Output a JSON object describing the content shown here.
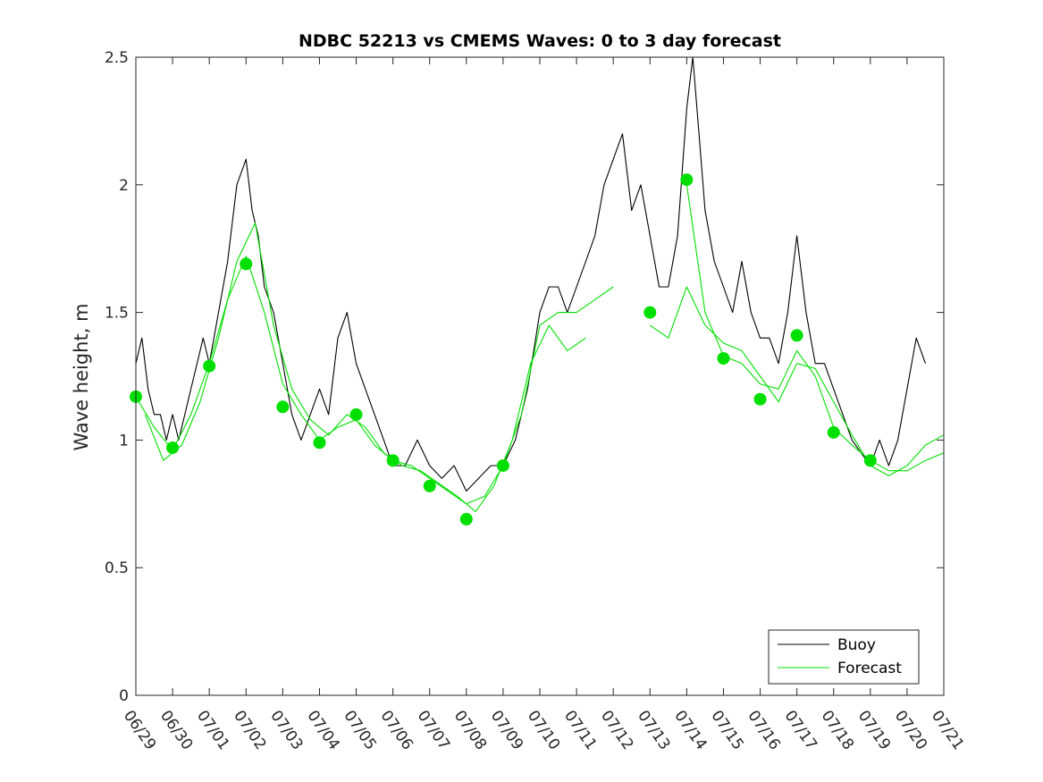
{
  "chart_data": {
    "type": "line",
    "title": "NDBC 52213 vs CMEMS Waves: 0 to 3 day forecast",
    "xlabel": "",
    "ylabel": "Wave height, m",
    "xlim": [
      "2024-06-29",
      "2024-07-21"
    ],
    "ylim": [
      0,
      2.5
    ],
    "x_ticks": [
      "06/29",
      "06/30",
      "07/01",
      "07/02",
      "07/03",
      "07/04",
      "07/05",
      "07/06",
      "07/07",
      "07/08",
      "07/09",
      "07/10",
      "07/11",
      "07/12",
      "07/13",
      "07/14",
      "07/15",
      "07/16",
      "07/17",
      "07/18",
      "07/19",
      "07/20",
      "07/21"
    ],
    "y_ticks": [
      "0",
      "0.5",
      "1",
      "1.5",
      "2",
      "2.5"
    ],
    "legend": {
      "position": "bottom-right",
      "entries": [
        {
          "label": "Buoy",
          "color": "#000000"
        },
        {
          "label": "Forecast",
          "color": "#00e000"
        }
      ]
    },
    "grid": false,
    "series": [
      {
        "name": "Buoy",
        "color": "#000000",
        "x": [
          "2024-06-29T00:00",
          "2024-06-29T04:00",
          "2024-06-29T08:00",
          "2024-06-29T12:00",
          "2024-06-29T16:00",
          "2024-06-29T20:00",
          "2024-06-30T00:00",
          "2024-06-30T04:00",
          "2024-06-30T08:00",
          "2024-06-30T12:00",
          "2024-06-30T16:00",
          "2024-06-30T20:00",
          "2024-07-01T00:00",
          "2024-07-01T06:00",
          "2024-07-01T12:00",
          "2024-07-01T18:00",
          "2024-07-02T00:00",
          "2024-07-02T04:00",
          "2024-07-02T08:00",
          "2024-07-02T12:00",
          "2024-07-02T18:00",
          "2024-07-03T00:00",
          "2024-07-03T06:00",
          "2024-07-03T12:00",
          "2024-07-03T18:00",
          "2024-07-04T00:00",
          "2024-07-04T06:00",
          "2024-07-04T12:00",
          "2024-07-04T18:00",
          "2024-07-05T00:00",
          "2024-07-05T06:00",
          "2024-07-05T12:00",
          "2024-07-05T18:00",
          "2024-07-06T00:00",
          "2024-07-06T08:00",
          "2024-07-06T16:00",
          "2024-07-07T00:00",
          "2024-07-07T08:00",
          "2024-07-07T16:00",
          "2024-07-08T00:00",
          "2024-07-08T08:00",
          "2024-07-08T16:00",
          "2024-07-09T00:00",
          "2024-07-09T08:00",
          "2024-07-09T16:00",
          "2024-07-10T00:00",
          "2024-07-10T06:00",
          "2024-07-10T12:00",
          "2024-07-10T18:00",
          "2024-07-11T00:00",
          "2024-07-11T06:00",
          "2024-07-11T12:00",
          "2024-07-11T18:00",
          "2024-07-12T00:00",
          "2024-07-12T06:00",
          "2024-07-12T12:00",
          "2024-07-12T18:00",
          "2024-07-13T00:00",
          "2024-07-13T06:00",
          "2024-07-13T12:00",
          "2024-07-13T18:00",
          "2024-07-14T00:00",
          "2024-07-14T04:00",
          "2024-07-14T08:00",
          "2024-07-14T12:00",
          "2024-07-14T18:00",
          "2024-07-15T00:00",
          "2024-07-15T06:00",
          "2024-07-15T12:00",
          "2024-07-15T18:00",
          "2024-07-16T00:00",
          "2024-07-16T06:00",
          "2024-07-16T12:00",
          "2024-07-16T18:00",
          "2024-07-17T00:00",
          "2024-07-17T06:00",
          "2024-07-17T12:00",
          "2024-07-17T18:00",
          "2024-07-18T00:00",
          "2024-07-18T06:00",
          "2024-07-18T12:00",
          "2024-07-18T18:00",
          "2024-07-19T00:00",
          "2024-07-19T06:00",
          "2024-07-19T12:00",
          "2024-07-19T18:00",
          "2024-07-20T00:00",
          "2024-07-20T06:00",
          "2024-07-20T12:00"
        ],
        "y": [
          1.3,
          1.4,
          1.2,
          1.1,
          1.1,
          1.0,
          1.1,
          1.0,
          1.1,
          1.2,
          1.3,
          1.4,
          1.3,
          1.5,
          1.7,
          2.0,
          2.1,
          1.9,
          1.8,
          1.6,
          1.5,
          1.3,
          1.1,
          1.0,
          1.1,
          1.2,
          1.1,
          1.4,
          1.5,
          1.3,
          1.2,
          1.1,
          1.0,
          0.9,
          0.9,
          1.0,
          0.9,
          0.85,
          0.9,
          0.8,
          0.85,
          0.9,
          0.9,
          1.0,
          1.2,
          1.5,
          1.6,
          1.6,
          1.5,
          1.6,
          1.7,
          1.8,
          2.0,
          2.1,
          2.2,
          1.9,
          2.0,
          1.8,
          1.6,
          1.6,
          1.8,
          2.3,
          2.5,
          2.2,
          1.9,
          1.7,
          1.6,
          1.5,
          1.7,
          1.5,
          1.4,
          1.4,
          1.3,
          1.5,
          1.8,
          1.5,
          1.3,
          1.3,
          1.2,
          1.1,
          1.0,
          0.95,
          0.9,
          1.0,
          0.9,
          1.0,
          1.2,
          1.4,
          1.3
        ]
      },
      {
        "name": "Forecast",
        "color": "#00e000",
        "x": [
          "2024-06-29T00:00",
          "2024-06-29T12:00",
          "2024-06-30T00:00",
          "2024-06-30T12:00",
          "2024-07-01T00:00",
          "2024-07-01T12:00",
          "2024-07-02T00:00",
          "2024-07-02T12:00",
          "2024-07-03T00:00",
          "2024-07-03T12:00",
          "2024-07-04T00:00",
          "2024-07-04T12:00",
          "2024-07-05T00:00",
          "2024-07-05T12:00",
          "2024-07-06T00:00",
          "2024-07-06T12:00",
          "2024-07-07T00:00",
          "2024-07-07T12:00",
          "2024-07-08T00:00",
          "2024-07-08T12:00",
          "2024-07-09T00:00",
          "2024-07-09T12:00",
          "2024-07-10T00:00",
          "2024-07-10T12:00",
          "2024-07-11T00:00",
          "2024-07-11T12:00",
          "2024-07-12T00:00"
        ],
        "y": [
          1.17,
          1.05,
          0.96,
          1.1,
          1.3,
          1.55,
          1.72,
          1.5,
          1.22,
          1.1,
          1.0,
          1.05,
          1.08,
          0.98,
          0.92,
          0.9,
          0.85,
          0.8,
          0.75,
          0.78,
          0.9,
          1.1,
          1.45,
          1.5,
          1.5,
          1.55,
          1.6
        ]
      },
      {
        "name": "",
        "color": "#00e000",
        "x": [
          "2024-07-14T00:00",
          "2024-07-14T12:00",
          "2024-07-15T00:00",
          "2024-07-15T12:00",
          "2024-07-16T00:00",
          "2024-07-16T12:00",
          "2024-07-17T00:00",
          "2024-07-17T12:00",
          "2024-07-18T00:00",
          "2024-07-18T12:00",
          "2024-07-19T00:00",
          "2024-07-19T12:00",
          "2024-07-20T00:00",
          "2024-07-20T12:00",
          "2024-07-21T00:00"
        ],
        "y": [
          2.0,
          1.5,
          1.33,
          1.3,
          1.22,
          1.2,
          1.35,
          1.25,
          1.05,
          0.98,
          0.92,
          0.88,
          0.88,
          0.92,
          0.95
        ]
      },
      {
        "name": "",
        "color": "#00e000",
        "x": [
          "2024-06-29T06:00",
          "2024-06-29T18:00",
          "2024-06-30T06:00",
          "2024-06-30T18:00",
          "2024-07-01T06:00",
          "2024-07-01T18:00",
          "2024-07-02T06:00",
          "2024-07-02T18:00",
          "2024-07-03T06:00",
          "2024-07-03T18:00",
          "2024-07-04T06:00",
          "2024-07-04T18:00",
          "2024-07-05T06:00",
          "2024-07-05T18:00",
          "2024-07-06T06:00",
          "2024-07-06T18:00",
          "2024-07-07T06:00",
          "2024-07-07T18:00",
          "2024-07-08T06:00",
          "2024-07-08T18:00",
          "2024-07-09T06:00",
          "2024-07-09T18:00",
          "2024-07-10T06:00",
          "2024-07-10T18:00",
          "2024-07-11T06:00"
        ],
        "y": [
          1.1,
          0.92,
          0.98,
          1.15,
          1.4,
          1.7,
          1.85,
          1.45,
          1.2,
          1.08,
          1.02,
          1.1,
          1.05,
          0.95,
          0.9,
          0.88,
          0.83,
          0.78,
          0.72,
          0.82,
          1.0,
          1.3,
          1.45,
          1.35,
          1.4
        ]
      },
      {
        "name": "",
        "color": "#00e000",
        "x": [
          "2024-07-13T00:00",
          "2024-07-13T12:00",
          "2024-07-14T00:00",
          "2024-07-14T12:00",
          "2024-07-15T00:00",
          "2024-07-15T12:00",
          "2024-07-16T00:00",
          "2024-07-16T12:00",
          "2024-07-17T00:00",
          "2024-07-17T12:00",
          "2024-07-18T00:00",
          "2024-07-18T12:00",
          "2024-07-19T00:00",
          "2024-07-19T12:00",
          "2024-07-20T00:00",
          "2024-07-20T12:00",
          "2024-07-21T00:00"
        ],
        "y": [
          1.45,
          1.4,
          1.6,
          1.45,
          1.38,
          1.35,
          1.25,
          1.15,
          1.3,
          1.28,
          1.15,
          1.02,
          0.9,
          0.86,
          0.9,
          0.98,
          1.02
        ]
      }
    ],
    "markers": {
      "color": "#00e000",
      "x": [
        "2024-06-29",
        "2024-06-30",
        "2024-07-01",
        "2024-07-02",
        "2024-07-03",
        "2024-07-04",
        "2024-07-05",
        "2024-07-06",
        "2024-07-07",
        "2024-07-08",
        "2024-07-09",
        "2024-07-13",
        "2024-07-14",
        "2024-07-15",
        "2024-07-16",
        "2024-07-17",
        "2024-07-18",
        "2024-07-19"
      ],
      "y": [
        1.17,
        0.97,
        1.29,
        1.69,
        1.13,
        0.99,
        1.1,
        0.92,
        0.82,
        0.69,
        0.9,
        1.5,
        2.02,
        1.32,
        1.16,
        1.41,
        1.03,
        0.92
      ]
    }
  }
}
